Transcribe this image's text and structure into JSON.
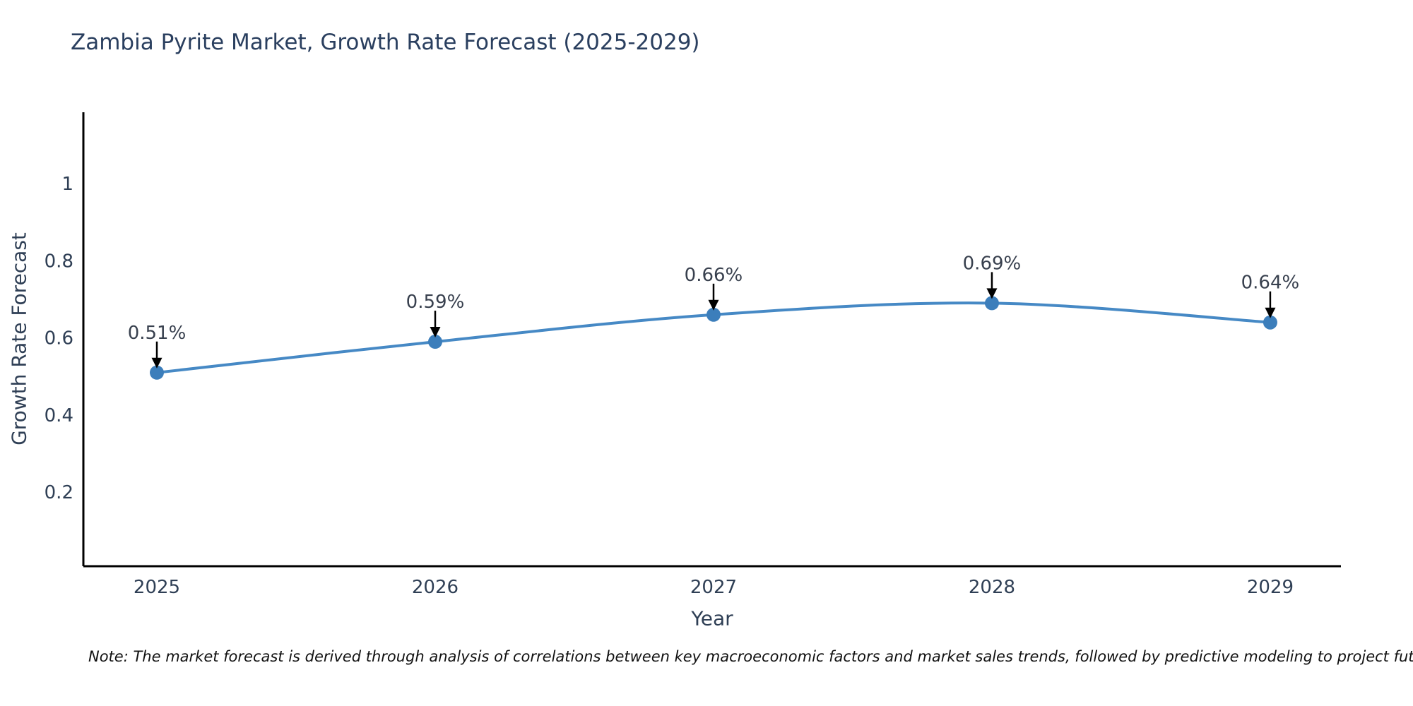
{
  "chart": {
    "title": "Zambia Pyrite Market, Growth Rate Forecast (2025-2029)",
    "xlabel": "Year",
    "ylabel": "Growth Rate Forecast",
    "note": "Note: The market forecast is derived through analysis of correlations between key macroeconomic factors and market sales trends, followed by predictive modeling to project future sales"
  },
  "chart_data": {
    "type": "line",
    "title": "Zambia Pyrite Market, Growth Rate Forecast (2025-2029)",
    "xlabel": "Year",
    "ylabel": "Growth Rate Forecast",
    "x": [
      2025,
      2026,
      2027,
      2028,
      2029
    ],
    "values": [
      0.51,
      0.59,
      0.66,
      0.69,
      0.64
    ],
    "point_labels": [
      "0.51%",
      "0.59%",
      "0.66%",
      "0.69%",
      "0.64%"
    ],
    "xticks": [
      2025,
      2026,
      2027,
      2028,
      2029
    ],
    "xtick_labels": [
      "2025",
      "2026",
      "2027",
      "2028",
      "2029"
    ],
    "yticks": [
      0.2,
      0.4,
      0.6,
      0.8,
      1
    ],
    "ytick_labels": [
      "0.2",
      "0.4",
      "0.6",
      "0.8",
      "1"
    ],
    "xlim": [
      2024.736,
      2029.254
    ],
    "ylim": [
      0.008,
      1.185
    ],
    "grid": false,
    "legend": null,
    "line_shape": "spline",
    "colors": {
      "line": "#4689c5",
      "marker": "#3c7ebb",
      "axis": "#000000",
      "title": "#2a3f5f",
      "tick": "#2f3f55",
      "annotation_text": "#38404e",
      "arrow": "#000000",
      "note": "#111111"
    }
  }
}
